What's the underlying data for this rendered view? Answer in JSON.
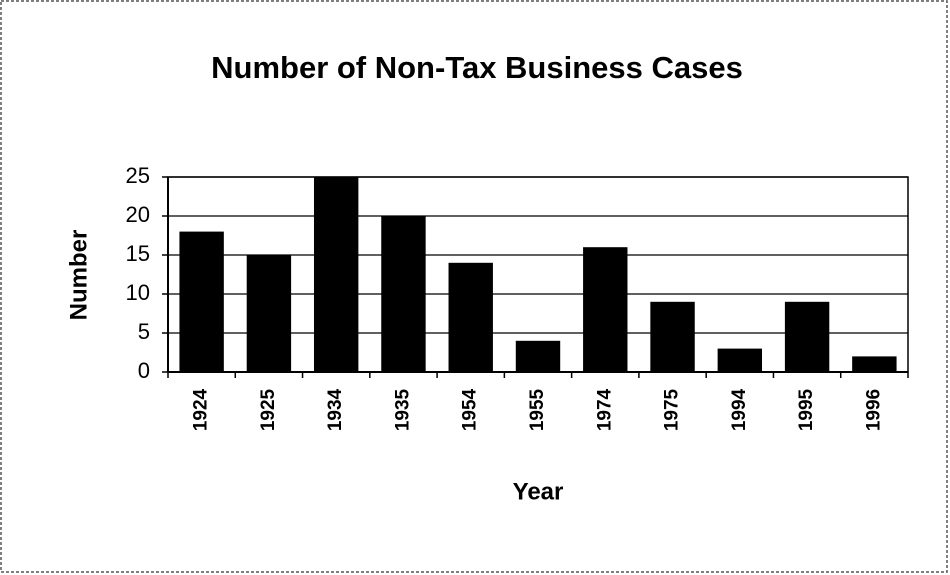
{
  "chart_data": {
    "type": "bar",
    "title": "Number of Non-Tax Business Cases",
    "x_label": "Year",
    "y_label": "Number",
    "categories": [
      "1924",
      "1925",
      "1934",
      "1935",
      "1954",
      "1955",
      "1974",
      "1975",
      "1994",
      "1995",
      "1996"
    ],
    "values": [
      18,
      15,
      25,
      20,
      14,
      4,
      16,
      9,
      3,
      9,
      2
    ],
    "color": "#000000",
    "ylim": [
      0,
      25
    ],
    "yticks": [
      0,
      5,
      10,
      15,
      20,
      25
    ],
    "grid": true
  }
}
